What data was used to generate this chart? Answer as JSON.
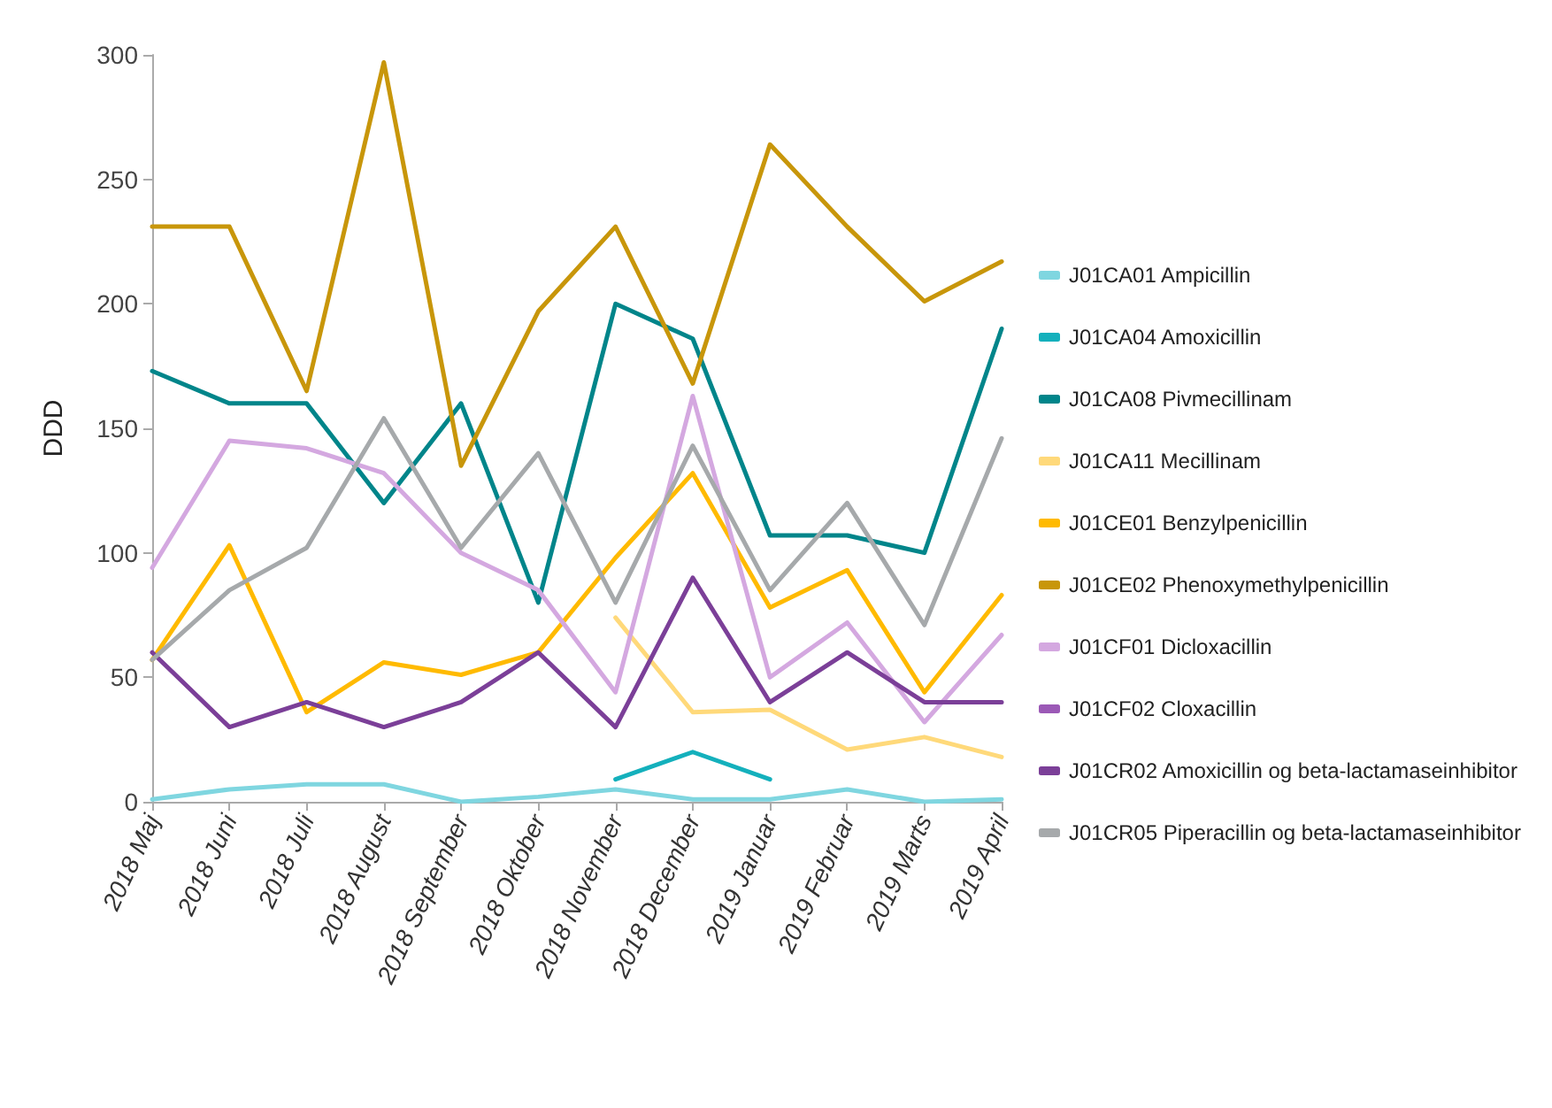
{
  "chart_data": {
    "type": "line",
    "ylabel": "DDD",
    "categories": [
      "2018 Maj",
      "2018 Juni",
      "2018 Juli",
      "2018 August",
      "2018 September",
      "2018 Oktober",
      "2018 November",
      "2018 December",
      "2019 Januar",
      "2019 Februar",
      "2019 Marts",
      "2019 April"
    ],
    "series": [
      {
        "name": "J01CA01 Ampicillin",
        "color": "#7fd6e0",
        "values": [
          1,
          5,
          7,
          7,
          0,
          2,
          5,
          1,
          1,
          5,
          0,
          1
        ]
      },
      {
        "name": "J01CA04 Amoxicillin",
        "color": "#14b0bc",
        "values": [
          null,
          null,
          null,
          null,
          null,
          null,
          9,
          20,
          9,
          null,
          null,
          null
        ]
      },
      {
        "name": "J01CA08 Pivmecillinam",
        "color": "#00858a",
        "values": [
          173,
          160,
          160,
          120,
          160,
          80,
          200,
          186,
          107,
          107,
          100,
          190
        ]
      },
      {
        "name": "J01CA11 Mecillinam",
        "color": "#ffd97a",
        "values": [
          null,
          null,
          null,
          null,
          null,
          null,
          74,
          36,
          37,
          21,
          26,
          18
        ]
      },
      {
        "name": "J01CE01 Benzylpenicillin",
        "color": "#ffba00",
        "values": [
          57,
          103,
          36,
          56,
          51,
          60,
          98,
          132,
          78,
          93,
          44,
          83
        ]
      },
      {
        "name": "J01CE02 Phenoxymethylpenicillin",
        "color": "#c8960a",
        "values": [
          231,
          231,
          165,
          297,
          135,
          197,
          231,
          168,
          264,
          231,
          201,
          217
        ]
      },
      {
        "name": "J01CF01 Dicloxacillin",
        "color": "#d4a8e0",
        "values": [
          94,
          145,
          142,
          132,
          100,
          85,
          44,
          163,
          50,
          72,
          32,
          67
        ]
      },
      {
        "name": "J01CF02 Cloxacillin",
        "color": "#9b59b6",
        "values": [
          null,
          null,
          null,
          null,
          null,
          null,
          null,
          null,
          null,
          null,
          null,
          null
        ]
      },
      {
        "name": "J01CR02 Amoxicillin og beta-lactamaseinhibitor",
        "color": "#7b3f98",
        "values": [
          60,
          30,
          40,
          30,
          40,
          60,
          30,
          90,
          40,
          60,
          40,
          40
        ]
      },
      {
        "name": "J01CR05 Piperacillin og beta-lactamaseinhibitor",
        "color": "#a6a9ab",
        "values": [
          57,
          85,
          102,
          154,
          102,
          140,
          80,
          143,
          85,
          120,
          71,
          146
        ]
      }
    ],
    "ylim": [
      0,
      300
    ],
    "yticks": [
      0,
      50,
      100,
      150,
      200,
      250,
      300
    ],
    "grid": false,
    "legend": "right",
    "marker": "none",
    "line_style": "solid"
  }
}
